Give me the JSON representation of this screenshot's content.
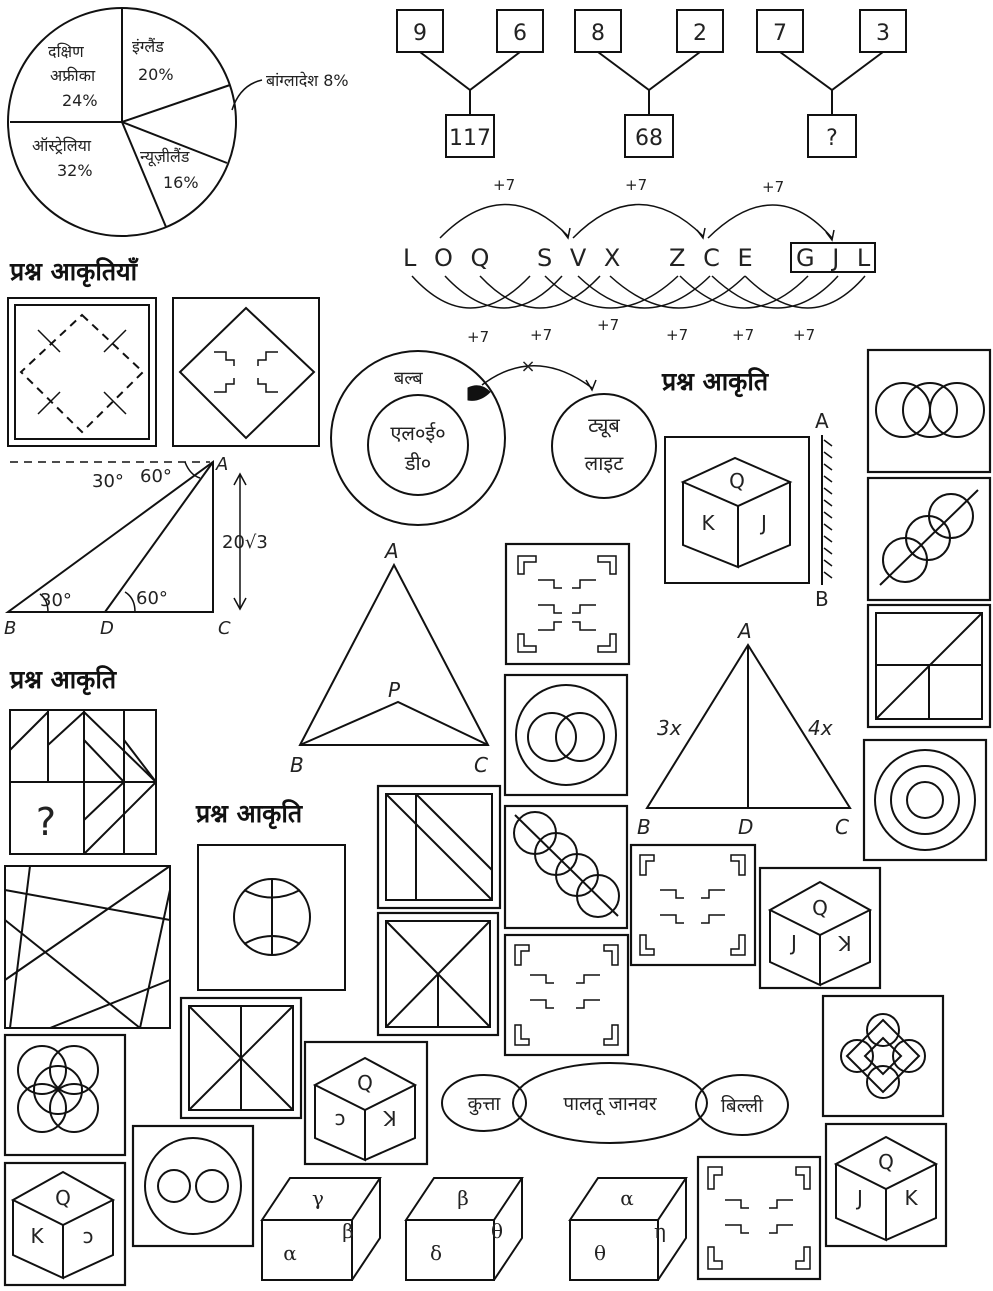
{
  "pie": {
    "slices": [
      {
        "name": "इंग्लैंड",
        "pct": "20%",
        "value": 20
      },
      {
        "name": "बांग्लादेश",
        "pct": "8%",
        "value": 8
      },
      {
        "name": "न्यूज़ीलैंड",
        "pct": "16%",
        "value": 16
      },
      {
        "name": "ऑस्ट्रेलिया",
        "pct": "32%",
        "value": 32
      },
      {
        "name": "दक्षिण",
        "name2": "अफ्रीका",
        "pct": "24%",
        "value": 24
      }
    ],
    "bangladesh_label": "बांग्लादेश 8%"
  },
  "number_tree": {
    "groups": [
      {
        "a": "9",
        "b": "6",
        "result": "117"
      },
      {
        "a": "8",
        "b": "2",
        "result": "68"
      },
      {
        "a": "7",
        "b": "3",
        "result": "?"
      }
    ]
  },
  "letter_series": {
    "groups": [
      "L O Q",
      "S V X",
      "Z C E",
      "G J L"
    ],
    "step": "+7"
  },
  "headings": {
    "question_figures": "प्रश्न आकृतियाँ",
    "question_figure": "प्रश्न आकृति"
  },
  "venn_bulb": {
    "outer": "बल्ब",
    "inner1": "एल०ई०",
    "inner2": "डी०",
    "right1": "ट्यूब",
    "right2": "लाइट",
    "cross": "×"
  },
  "triangle_height": {
    "angle30": "30°",
    "angle60": "60°",
    "height": "20√3",
    "points": [
      "A",
      "B",
      "D",
      "C"
    ]
  },
  "triangle_p": {
    "points": [
      "A",
      "P",
      "B",
      "C"
    ]
  },
  "triangle_x": {
    "points": [
      "A",
      "B",
      "D",
      "C"
    ],
    "left": "3x",
    "right": "4x"
  },
  "mirror_labels": {
    "top": "A",
    "bottom": "B"
  },
  "cube_faces": {
    "c1": {
      "top": "Q",
      "left": "K",
      "right": "J"
    },
    "c2": {
      "top": "Q",
      "left": "J",
      "right": "K"
    },
    "c3": {
      "top": "Q",
      "left": "ↄ",
      "right": "K"
    },
    "c4": {
      "top": "Q",
      "left": "K",
      "right": "ↄ"
    },
    "c5": {
      "top": "Q",
      "left": "J",
      "right": "K"
    }
  },
  "prism_faces": [
    {
      "top": "γ",
      "front": "α",
      "side": "β"
    },
    {
      "top": "β",
      "front": "δ",
      "side": "θ"
    },
    {
      "top": "α",
      "front": "θ",
      "side": "η"
    }
  ],
  "venn_pets": {
    "left": "कुत्ता",
    "middle": "पालतू जानवर",
    "right": "बिल्ली"
  },
  "question_mark": "?"
}
